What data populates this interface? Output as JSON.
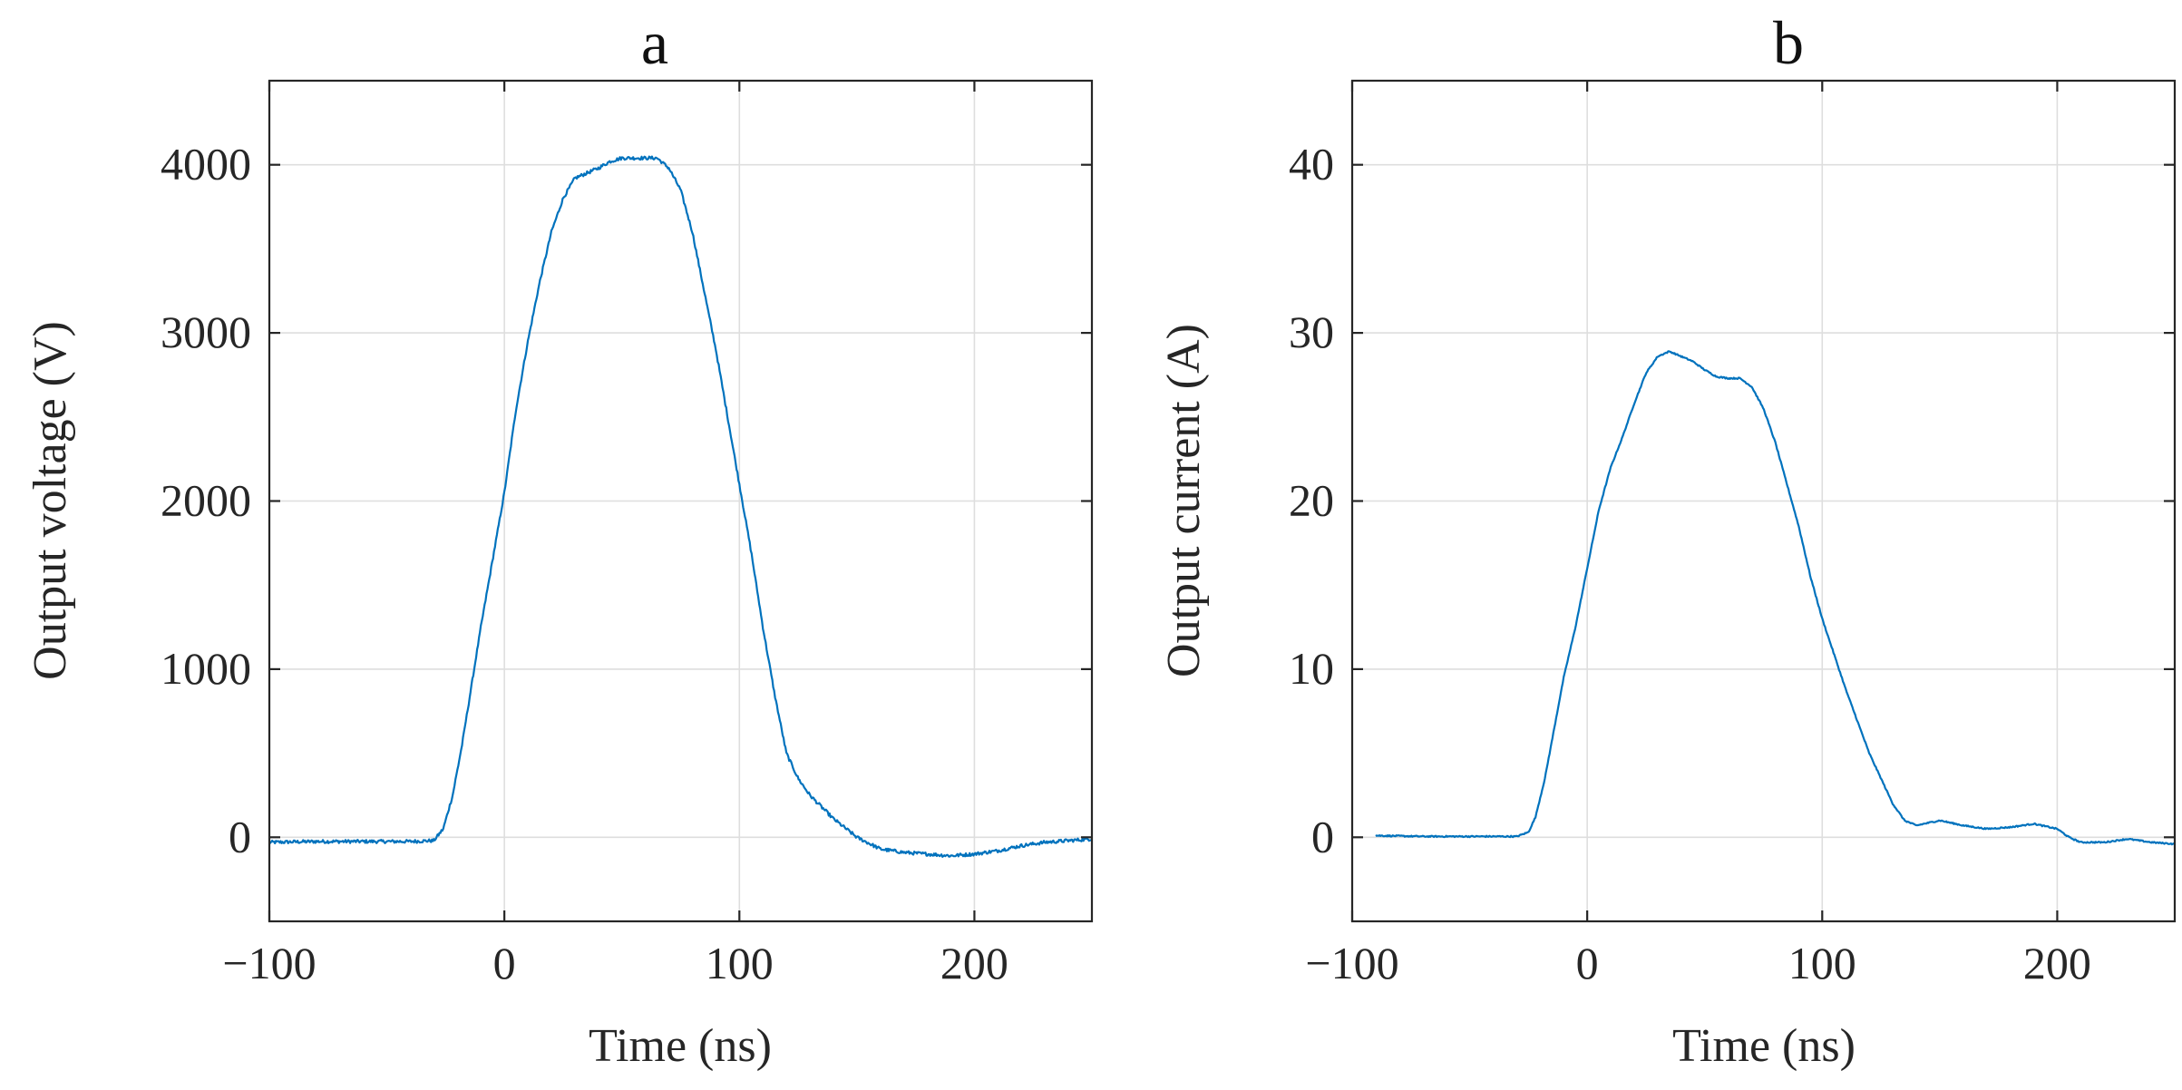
{
  "colors": {
    "series": "#0072BD",
    "axis": "#262626",
    "grid": "#dedede"
  },
  "chart_data": [
    {
      "type": "line",
      "title": "a",
      "xlabel": "Time (ns)",
      "ylabel": "Output voltage (V)",
      "xlim": [
        -100,
        250
      ],
      "ylim": [
        -500,
        4500
      ],
      "xticks": [
        -100,
        0,
        100,
        200
      ],
      "yticks": [
        0,
        1000,
        2000,
        3000,
        4000
      ],
      "xtick_labels": [
        "−100",
        "0",
        "100",
        "200"
      ],
      "ytick_labels": [
        "0",
        "1000",
        "2000",
        "3000",
        "4000"
      ],
      "grid": true,
      "noise": 10,
      "series": [
        {
          "name": "Output voltage",
          "x": [
            -100,
            -80,
            -60,
            -40,
            -30,
            -26,
            -22,
            -18,
            -14,
            -10,
            -5,
            0,
            5,
            10,
            15,
            20,
            25,
            30,
            35,
            40,
            45,
            50,
            55,
            60,
            65,
            70,
            75,
            80,
            85,
            90,
            95,
            100,
            105,
            110,
            115,
            120,
            125,
            130,
            140,
            150,
            160,
            170,
            180,
            190,
            200,
            210,
            220,
            230,
            240,
            250
          ],
          "y": [
            -30,
            -25,
            -25,
            -25,
            -20,
            50,
            250,
            550,
            900,
            1250,
            1650,
            2050,
            2550,
            2950,
            3300,
            3600,
            3800,
            3920,
            3950,
            3980,
            4020,
            4040,
            4040,
            4040,
            4040,
            3980,
            3850,
            3600,
            3250,
            2900,
            2500,
            2100,
            1700,
            1250,
            850,
            500,
            350,
            250,
            110,
            0,
            -70,
            -90,
            -100,
            -110,
            -100,
            -80,
            -50,
            -30,
            -20,
            -10
          ]
        }
      ]
    },
    {
      "type": "line",
      "title": "b",
      "xlabel": "Time (ns)",
      "ylabel": "Output current (A)",
      "xlim": [
        -100,
        250
      ],
      "ylim": [
        -5,
        45
      ],
      "xticks": [
        -100,
        0,
        100,
        200
      ],
      "yticks": [
        0,
        10,
        20,
        30,
        40
      ],
      "xtick_labels": [
        "−100",
        "0",
        "100",
        "200"
      ],
      "ytick_labels": [
        "0",
        "10",
        "20",
        "30",
        "40"
      ],
      "grid": true,
      "noise": 0.04,
      "series": [
        {
          "name": "Output current",
          "x": [
            -90,
            -70,
            -50,
            -30,
            -25,
            -22,
            -18,
            -14,
            -10,
            -5,
            0,
            5,
            10,
            15,
            20,
            25,
            30,
            35,
            40,
            45,
            50,
            55,
            60,
            65,
            70,
            75,
            80,
            85,
            90,
            95,
            100,
            110,
            120,
            130,
            135,
            140,
            150,
            160,
            170,
            180,
            190,
            200,
            205,
            210,
            220,
            230,
            240,
            250
          ],
          "y": [
            0.1,
            0.05,
            0.05,
            0.05,
            0.3,
            1.2,
            3.5,
            6.5,
            9.5,
            12.5,
            16,
            19.5,
            22,
            23.8,
            25.8,
            27.6,
            28.6,
            28.9,
            28.6,
            28.3,
            27.8,
            27.4,
            27.3,
            27.3,
            26.8,
            25.5,
            23.5,
            21,
            18.5,
            15.5,
            13,
            8.8,
            5,
            2,
            1,
            0.7,
            1,
            0.7,
            0.5,
            0.6,
            0.8,
            0.5,
            0,
            -0.3,
            -0.3,
            -0.1,
            -0.3,
            -0.4
          ]
        }
      ]
    }
  ]
}
